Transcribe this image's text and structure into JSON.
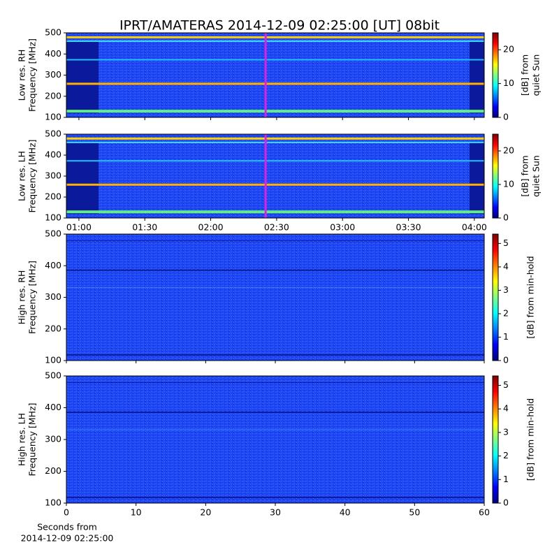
{
  "title": "IPRT/AMATERAS 2014-12-09 02:25:00 [UT]   08bit",
  "chart_data": [
    {
      "type": "spectrogram",
      "ylabel": [
        "Low res. RH",
        "Frequency [MHz]"
      ],
      "xlim": [
        54.3,
        244.5
      ],
      "xticks": [
        60,
        90,
        120,
        150,
        180,
        210,
        240
      ],
      "xtick_labels_shown": false,
      "ylim": [
        100,
        500
      ],
      "yticks": [
        100,
        200,
        300,
        400,
        500
      ],
      "cursor_x": 145,
      "cursor_color": "#e020e0",
      "colorbar": {
        "label": [
          "[dB] from",
          "quiet Sun"
        ],
        "lim": [
          0,
          25
        ],
        "ticks": [
          0,
          10,
          20
        ]
      }
    },
    {
      "type": "spectrogram",
      "ylabel": [
        "Low res. LH",
        "Frequency [MHz]"
      ],
      "xlim": [
        54.3,
        244.5
      ],
      "xticks": [
        {
          "value": 60,
          "label": "01:00"
        },
        {
          "value": 90,
          "label": "01:30"
        },
        {
          "value": 120,
          "label": "02:00"
        },
        {
          "value": 150,
          "label": "02:30"
        },
        {
          "value": 180,
          "label": "03:00"
        },
        {
          "value": 210,
          "label": "03:30"
        },
        {
          "value": 240,
          "label": "04:00"
        }
      ],
      "ylim": [
        100,
        500
      ],
      "yticks": [
        100,
        200,
        300,
        400,
        500
      ],
      "cursor_x": 145,
      "cursor_color": "#e020e0",
      "colorbar": {
        "label": [
          "[dB] from",
          "quiet Sun"
        ],
        "lim": [
          0,
          25
        ],
        "ticks": [
          0,
          10,
          20
        ]
      }
    },
    {
      "type": "spectrogram",
      "ylabel": [
        "High res. RH",
        "Frequency [MHz]"
      ],
      "xlim": [
        0,
        60
      ],
      "xticks": [
        0,
        10,
        20,
        30,
        40,
        50,
        60
      ],
      "xtick_labels_shown": false,
      "ylim": [
        100,
        500
      ],
      "yticks": [
        100,
        200,
        300,
        400,
        500
      ],
      "colorbar": {
        "label": [
          "[dB] from min-hold"
        ],
        "lim": [
          0,
          5.4
        ],
        "ticks": [
          0,
          1,
          2,
          3,
          4,
          5
        ]
      }
    },
    {
      "type": "spectrogram",
      "ylabel": [
        "High res. LH",
        "Frequency [MHz]"
      ],
      "xlabel": [
        "Seconds from",
        "2014-12-09 02:25:00"
      ],
      "xlim": [
        0,
        60
      ],
      "xticks": [
        0,
        10,
        20,
        30,
        40,
        50,
        60
      ],
      "ylim": [
        100,
        500
      ],
      "yticks": [
        100,
        200,
        300,
        400,
        500
      ],
      "colorbar": {
        "label": [
          "[dB] from min-hold"
        ],
        "lim": [
          0,
          5.4
        ],
        "ticks": [
          0,
          1,
          2,
          3,
          4,
          5
        ]
      }
    }
  ]
}
